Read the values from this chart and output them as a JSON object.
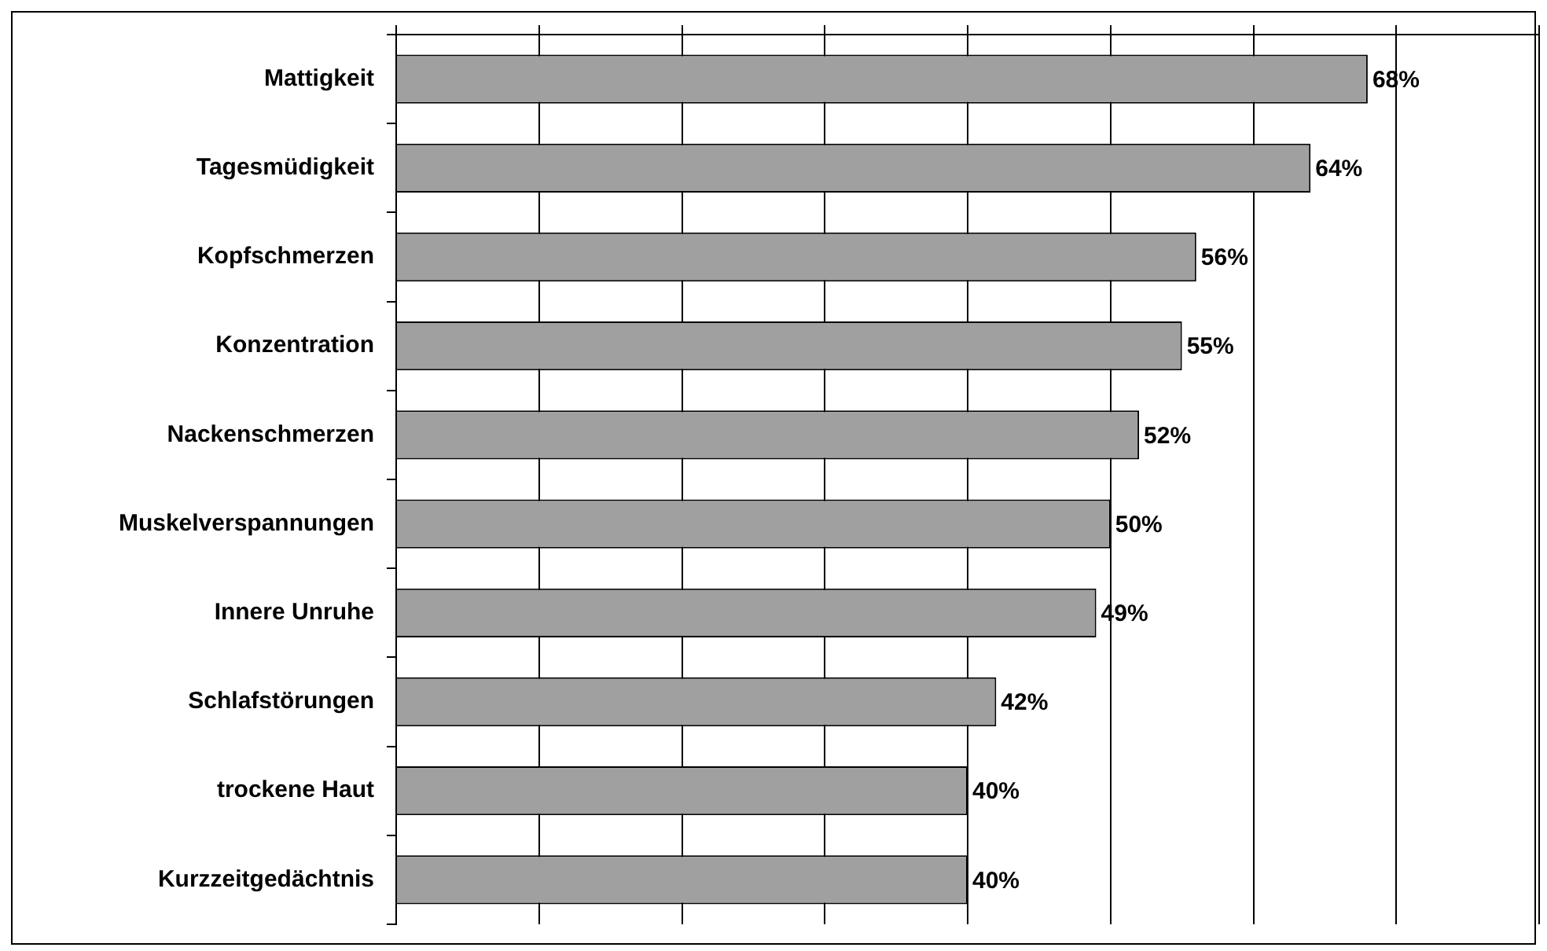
{
  "chart_data": {
    "type": "bar",
    "orientation": "horizontal",
    "categories": [
      "Mattigkeit",
      "Tagesmüdigkeit",
      "Kopfschmerzen",
      "Konzentration",
      "Nackenschmerzen",
      "Muskelverspannungen",
      "Innere Unruhe",
      "Schlafstörungen",
      "trockene Haut",
      "Kurzzeitgedächtnis"
    ],
    "values": [
      68,
      64,
      56,
      55,
      52,
      50,
      49,
      42,
      40,
      40
    ],
    "value_labels": [
      "68%",
      "64%",
      "56%",
      "55%",
      "52%",
      "50%",
      "49%",
      "42%",
      "40%",
      "40%"
    ],
    "color": "#a0a0a0",
    "xlim": [
      0,
      80
    ],
    "xticks": [
      {
        "value": 0,
        "label": null
      },
      {
        "value": 10,
        "label": null
      },
      {
        "value": 20,
        "label": null
      },
      {
        "value": 30,
        "label": null
      },
      {
        "value": 40,
        "label": null
      },
      {
        "value": 50,
        "label": null
      },
      {
        "value": 60,
        "label": null
      },
      {
        "value": 70,
        "label": null
      },
      {
        "value": 80,
        "label": null
      }
    ],
    "grid": "x",
    "tick_labels": "y"
  }
}
